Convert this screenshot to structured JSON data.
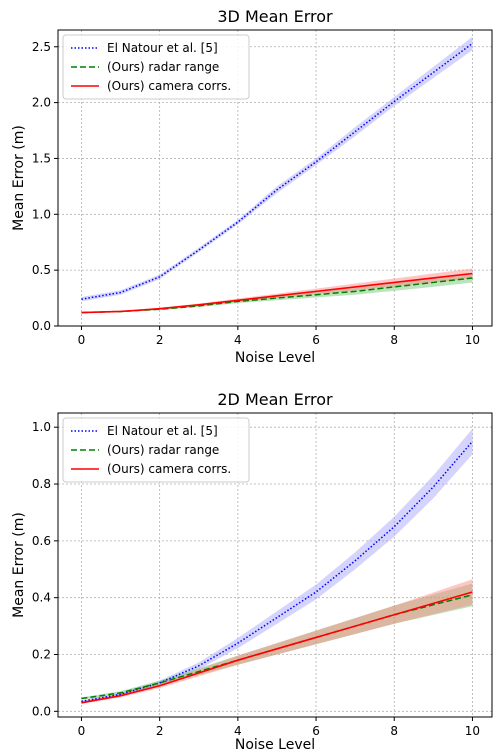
{
  "chart_data": [
    {
      "type": "line",
      "title": "3D Mean Error",
      "xlabel": "Noise Level",
      "ylabel": "Mean Error (m)",
      "xlim": [
        -0.6,
        10.5
      ],
      "ylim": [
        0,
        2.65
      ],
      "xticks": [
        0,
        2,
        4,
        6,
        8,
        10
      ],
      "yticks": [
        0.0,
        0.5,
        1.0,
        1.5,
        2.0,
        2.5
      ],
      "grid": true,
      "legend_position": "top-left",
      "x": [
        0,
        1,
        2,
        3,
        4,
        5,
        6,
        7,
        8,
        9,
        10
      ],
      "series": [
        {
          "name": "El Natour et al. [5]",
          "style": "dotted",
          "color": "#0000ff",
          "band_color": "#a0a0ff",
          "values": [
            0.24,
            0.3,
            0.44,
            0.68,
            0.93,
            1.22,
            1.47,
            1.74,
            2.01,
            2.27,
            2.53
          ],
          "band": [
            0.02,
            0.02,
            0.02,
            0.02,
            0.02,
            0.03,
            0.03,
            0.04,
            0.04,
            0.05,
            0.06
          ]
        },
        {
          "name": "(Ours) radar range",
          "style": "dashed",
          "color": "#008000",
          "band_color": "#6cc06c",
          "values": [
            0.12,
            0.13,
            0.15,
            0.18,
            0.22,
            0.25,
            0.28,
            0.31,
            0.35,
            0.39,
            0.43
          ],
          "band": [
            0.005,
            0.005,
            0.008,
            0.01,
            0.015,
            0.02,
            0.025,
            0.03,
            0.035,
            0.04,
            0.04
          ]
        },
        {
          "name": "(Ours) camera corrs.",
          "style": "solid",
          "color": "#ff0000",
          "band_color": "#ff8080",
          "values": [
            0.12,
            0.13,
            0.155,
            0.19,
            0.23,
            0.27,
            0.31,
            0.35,
            0.39,
            0.43,
            0.47
          ],
          "band": [
            0.005,
            0.005,
            0.008,
            0.01,
            0.015,
            0.02,
            0.025,
            0.03,
            0.035,
            0.04,
            0.045
          ]
        }
      ]
    },
    {
      "type": "line",
      "title": "2D Mean Error",
      "xlabel": "Noise Level",
      "ylabel": "Mean Error (m)",
      "xlim": [
        -0.6,
        10.5
      ],
      "ylim": [
        -0.02,
        1.05
      ],
      "xticks": [
        0,
        2,
        4,
        6,
        8,
        10
      ],
      "yticks": [
        0.0,
        0.2,
        0.4,
        0.6,
        0.8,
        1.0
      ],
      "grid": true,
      "legend_position": "top-left",
      "x": [
        0,
        1,
        2,
        3,
        4,
        5,
        6,
        7,
        8,
        9,
        10
      ],
      "series": [
        {
          "name": "El Natour et al. [5]",
          "style": "dotted",
          "color": "#0000ff",
          "band_color": "#a0a0ff",
          "values": [
            0.035,
            0.06,
            0.1,
            0.16,
            0.24,
            0.33,
            0.42,
            0.53,
            0.65,
            0.79,
            0.95
          ],
          "band": [
            0.004,
            0.005,
            0.008,
            0.012,
            0.018,
            0.022,
            0.026,
            0.03,
            0.035,
            0.04,
            0.045
          ]
        },
        {
          "name": "(Ours) radar range",
          "style": "dashed",
          "color": "#008000",
          "band_color": "#6cc06c",
          "values": [
            0.045,
            0.065,
            0.1,
            0.14,
            0.18,
            0.22,
            0.26,
            0.3,
            0.34,
            0.375,
            0.41
          ],
          "band": [
            0.004,
            0.006,
            0.008,
            0.012,
            0.016,
            0.02,
            0.024,
            0.028,
            0.032,
            0.036,
            0.04
          ]
        },
        {
          "name": "(Ours) camera corrs.",
          "style": "solid",
          "color": "#ff0000",
          "band_color": "#ff8080",
          "values": [
            0.03,
            0.055,
            0.09,
            0.135,
            0.18,
            0.22,
            0.26,
            0.3,
            0.34,
            0.38,
            0.42
          ],
          "band": [
            0.004,
            0.006,
            0.008,
            0.012,
            0.016,
            0.02,
            0.024,
            0.028,
            0.032,
            0.038,
            0.045
          ]
        }
      ]
    }
  ]
}
